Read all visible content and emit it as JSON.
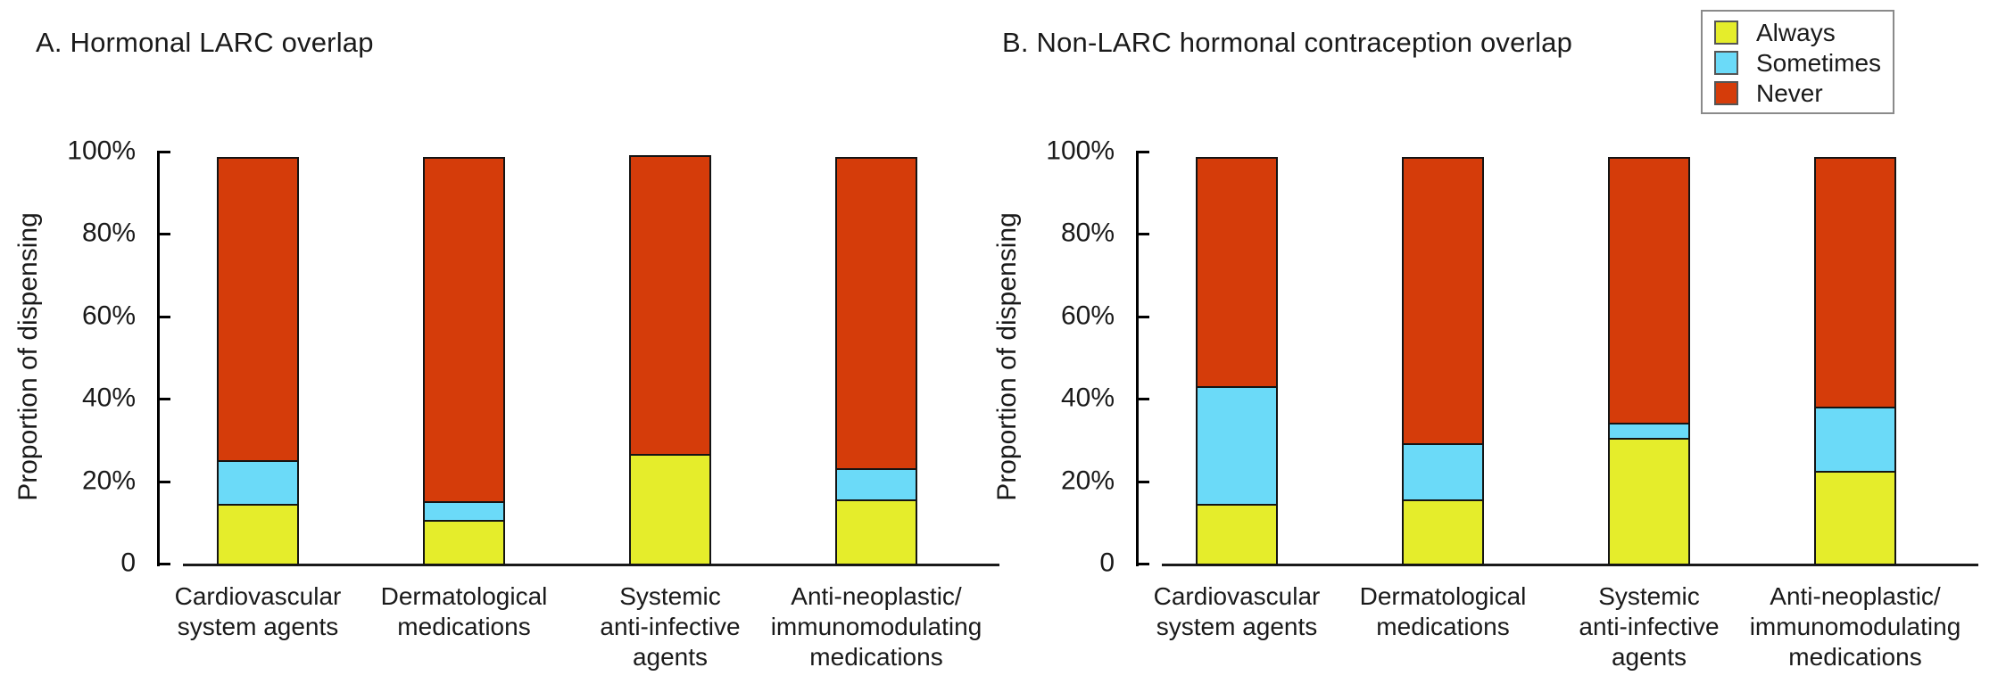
{
  "legend": {
    "items": [
      {
        "label": "Always",
        "color": "#e5ed2b"
      },
      {
        "label": "Sometimes",
        "color": "#6bdaf8"
      },
      {
        "label": "Never",
        "color": "#d53c0a"
      }
    ]
  },
  "chart_data": [
    {
      "type": "bar",
      "stacked": true,
      "title": "A. Hormonal LARC overlap",
      "ylabel": "Proportion of dispensing",
      "ylim": [
        0,
        100
      ],
      "grid": false,
      "legend_position": "top-right-outside",
      "yticks": [
        {
          "label": "100%",
          "value": 100
        },
        {
          "label": "80%",
          "value": 80
        },
        {
          "label": "60%",
          "value": 60
        },
        {
          "label": "40%",
          "value": 40
        },
        {
          "label": "20%",
          "value": 20
        },
        {
          "label": "0",
          "value": 0
        }
      ],
      "categories": [
        [
          "Cardiovascular",
          "system agents"
        ],
        [
          "Dermatological",
          "medications"
        ],
        [
          "Systemic",
          "anti-infective",
          "agents"
        ],
        [
          "Anti-neoplastic/",
          "immunomodulating",
          "medications"
        ]
      ],
      "series": [
        {
          "name": "Always",
          "values": [
            15,
            11,
            27,
            16
          ]
        },
        {
          "name": "Sometimes",
          "values": [
            11,
            5,
            0,
            8
          ]
        },
        {
          "name": "Never",
          "values": [
            74,
            84,
            73,
            76
          ]
        }
      ]
    },
    {
      "type": "bar",
      "stacked": true,
      "title": "B. Non-LARC hormonal contraception overlap",
      "ylabel": "Proportion of dispensing",
      "ylim": [
        0,
        100
      ],
      "grid": false,
      "legend_position": "top-right-outside",
      "yticks": [
        {
          "label": "100%",
          "value": 100
        },
        {
          "label": "80%",
          "value": 80
        },
        {
          "label": "60%",
          "value": 60
        },
        {
          "label": "40%",
          "value": 40
        },
        {
          "label": "20%",
          "value": 20
        },
        {
          "label": "0",
          "value": 0
        }
      ],
      "categories": [
        [
          "Cardiovascular",
          "system agents"
        ],
        [
          "Dermatological",
          "medications"
        ],
        [
          "Systemic",
          "anti-infective",
          "agents"
        ],
        [
          "Anti-neoplastic/",
          "immunomodulating",
          "medications"
        ]
      ],
      "series": [
        {
          "name": "Always",
          "values": [
            15,
            16,
            31,
            23
          ]
        },
        {
          "name": "Sometimes",
          "values": [
            29,
            14,
            4,
            16
          ]
        },
        {
          "name": "Never",
          "values": [
            56,
            70,
            65,
            61
          ]
        }
      ]
    }
  ]
}
